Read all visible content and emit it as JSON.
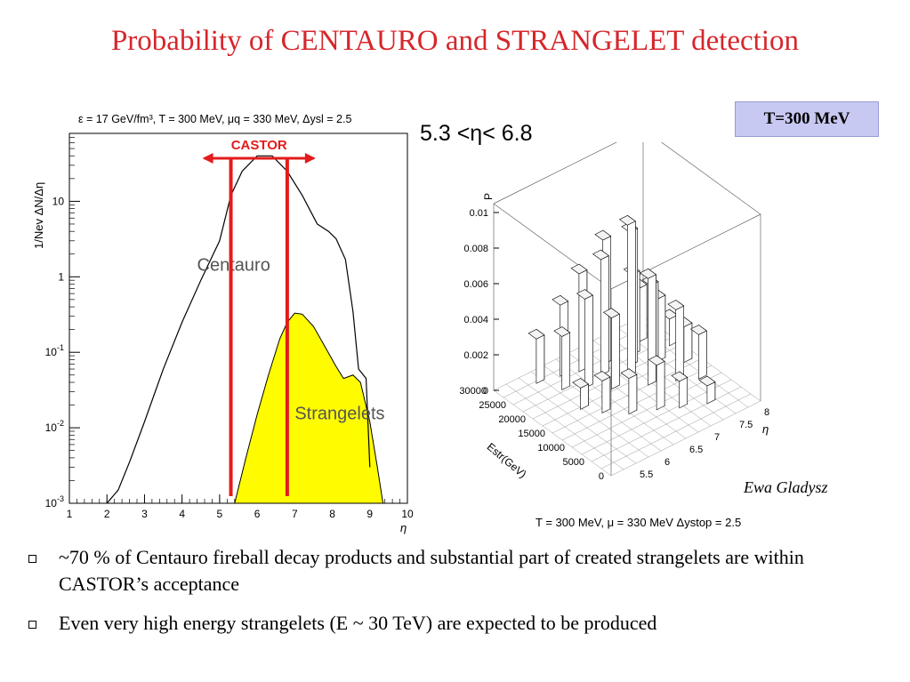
{
  "title": "Probability of CENTAURO and STRANGELET detection",
  "eta_range_label": "5.3 <η< 6.8",
  "temp_box": "T=300 MeV",
  "author": "Ewa Gladysz",
  "bullets": [
    "~70 % of Centauro fireball decay products and substantial part of created strangelets are within CASTOR’s acceptance",
    "Even very high energy strangelets (E ~ 30 TeV) are expected to be produced"
  ],
  "colors": {
    "title": "#d6262b",
    "castor": "#e31b1b",
    "strangelets_fill": "#fffc00",
    "temp_box": "#c7c9f2"
  },
  "chart_data": [
    {
      "type": "line",
      "title": "ε = 17 GeV/fm³, T = 300 MeV, μq = 330 MeV, Δysl = 2.5",
      "xlabel": "η",
      "ylabel": "1/Nev ΔN/Δη",
      "xlim": [
        1,
        10
      ],
      "ylim_log10": [
        -3,
        1.9
      ],
      "yscale": "log",
      "x_ticks": [
        1,
        2,
        3,
        4,
        5,
        6,
        7,
        8,
        9,
        10
      ],
      "y_ticks": [
        "10^-3",
        "10^-2",
        "10^-1",
        "1",
        "10"
      ],
      "grid": false,
      "castor_label": "CASTOR",
      "castor_range": [
        5.3,
        6.8
      ],
      "series": [
        {
          "name": "Centauro",
          "x": [
            2.0,
            2.3,
            2.6,
            3.0,
            3.5,
            4.0,
            4.5,
            5.0,
            5.3,
            5.6,
            6.0,
            6.4,
            6.8,
            7.2,
            7.6,
            7.9,
            8.1,
            8.35,
            8.55,
            8.7,
            8.9,
            9.0
          ],
          "y": [
            0.001,
            0.0015,
            0.0035,
            0.012,
            0.06,
            0.25,
            0.9,
            3.0,
            12,
            25,
            40,
            40,
            25,
            12,
            5.0,
            4.0,
            3.2,
            1.7,
            0.35,
            0.06,
            0.045,
            0.003
          ]
        },
        {
          "name": "Strangelets",
          "x": [
            5.4,
            5.7,
            6.0,
            6.3,
            6.6,
            6.8,
            7.0,
            7.2,
            7.5,
            7.8,
            8.1,
            8.3,
            8.55,
            8.75,
            9.0,
            9.2,
            9.35
          ],
          "y": [
            0.001,
            0.004,
            0.015,
            0.05,
            0.15,
            0.25,
            0.33,
            0.32,
            0.22,
            0.12,
            0.065,
            0.045,
            0.05,
            0.04,
            0.012,
            0.003,
            0.001
          ]
        }
      ]
    },
    {
      "type": "3d-bar",
      "xlabel": "η",
      "ylabel": "Estr(GeV)",
      "zlabel": "P",
      "x_ticks": [
        "5.5",
        "6",
        "6.5",
        "7",
        "7.5",
        "8"
      ],
      "y_ticks": [
        "0",
        "5000",
        "10000",
        "15000",
        "20000",
        "25000",
        "30000"
      ],
      "z_ticks": [
        "0",
        "0.002",
        "0.004",
        "0.006",
        "0.008",
        "0.01"
      ],
      "footer": "T = 300 MeV, μ = 330 MeV  Δystop = 2.5",
      "bars": [
        {
          "eta": 5.7,
          "E": 28000,
          "P": 0.0025
        },
        {
          "eta": 5.9,
          "E": 24000,
          "P": 0.003
        },
        {
          "eta": 6.1,
          "E": 27000,
          "P": 0.004
        },
        {
          "eta": 6.2,
          "E": 22000,
          "P": 0.005
        },
        {
          "eta": 6.4,
          "E": 26000,
          "P": 0.0055
        },
        {
          "eta": 6.5,
          "E": 19000,
          "P": 0.004
        },
        {
          "eta": 6.6,
          "E": 23000,
          "P": 0.0065
        },
        {
          "eta": 6.8,
          "E": 25000,
          "P": 0.007
        },
        {
          "eta": 6.9,
          "E": 20000,
          "P": 0.0085
        },
        {
          "eta": 7.0,
          "E": 16000,
          "P": 0.006
        },
        {
          "eta": 7.1,
          "E": 22000,
          "P": 0.0075
        },
        {
          "eta": 7.2,
          "E": 18000,
          "P": 0.005
        },
        {
          "eta": 7.3,
          "E": 24000,
          "P": 0.0045
        },
        {
          "eta": 7.4,
          "E": 14000,
          "P": 0.004
        },
        {
          "eta": 7.5,
          "E": 20000,
          "P": 0.0035
        },
        {
          "eta": 7.6,
          "E": 26000,
          "P": 0.003
        },
        {
          "eta": 7.7,
          "E": 12000,
          "P": 0.0025
        },
        {
          "eta": 7.8,
          "E": 17000,
          "P": 0.002
        },
        {
          "eta": 7.9,
          "E": 22000,
          "P": 0.0015
        },
        {
          "eta": 6.3,
          "E": 12000,
          "P": 0.002
        },
        {
          "eta": 6.7,
          "E": 10000,
          "P": 0.0025
        },
        {
          "eta": 7.0,
          "E": 8000,
          "P": 0.0015
        },
        {
          "eta": 7.4,
          "E": 6000,
          "P": 0.001
        },
        {
          "eta": 6.0,
          "E": 15000,
          "P": 0.0018
        },
        {
          "eta": 5.8,
          "E": 18000,
          "P": 0.0012
        }
      ]
    }
  ]
}
